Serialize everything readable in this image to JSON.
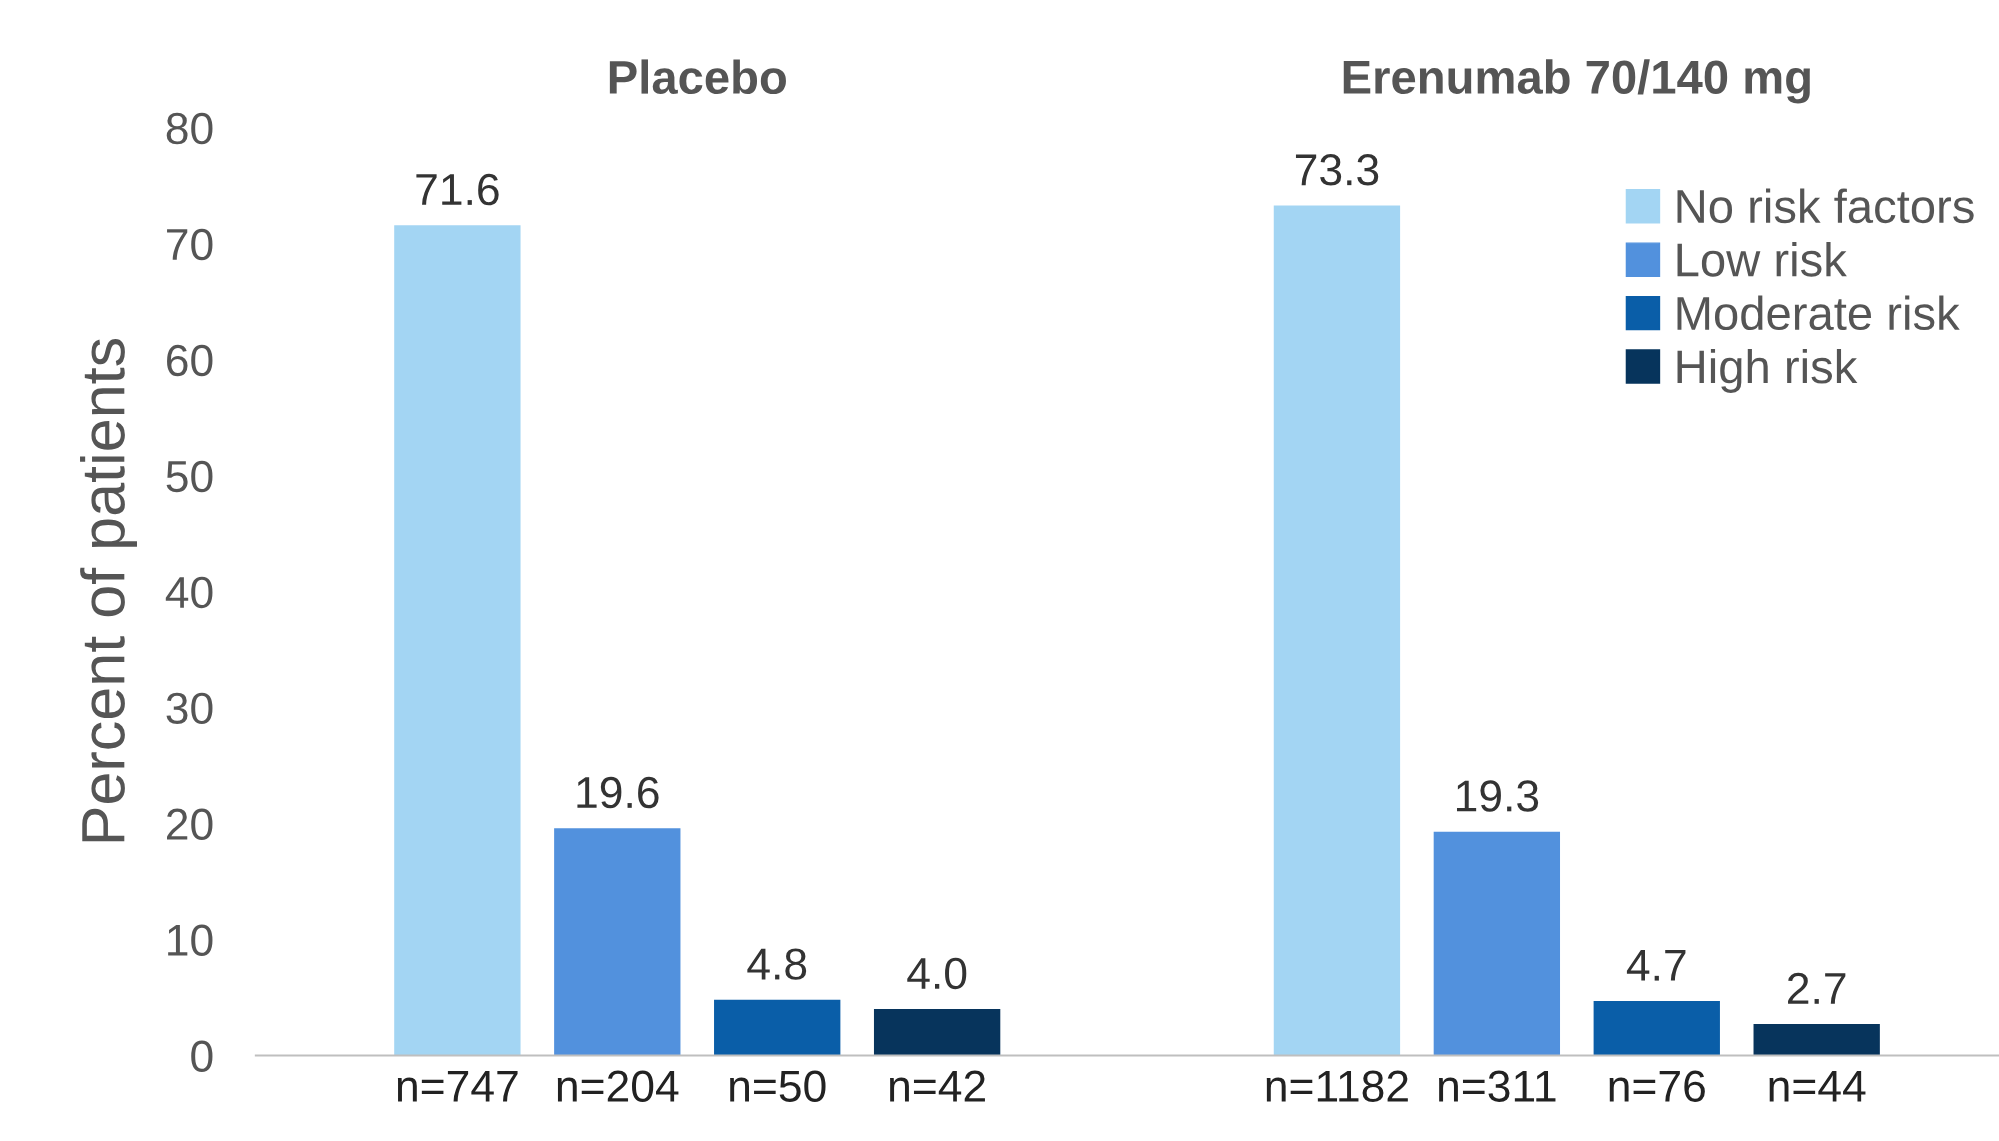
{
  "chart_data": {
    "type": "bar",
    "ylabel": "Percent of patients",
    "categories": [
      "n=747",
      "n=204",
      "n=50",
      "n=42",
      "n=1182",
      "n=311",
      "n=76",
      "n=44"
    ],
    "series": [
      {
        "name": "No risk factors",
        "color": "#a3d5f3",
        "values": [
          71.6,
          null,
          null,
          null,
          73.3,
          null,
          null,
          null
        ]
      },
      {
        "name": "Low risk",
        "color": "#5291dd",
        "values": [
          null,
          19.6,
          null,
          null,
          null,
          19.3,
          null,
          null
        ]
      },
      {
        "name": "Moderate risk",
        "color": "#0a5ea8",
        "values": [
          null,
          null,
          4.8,
          null,
          null,
          null,
          4.7,
          null
        ]
      },
      {
        "name": "High risk",
        "color": "#07345c",
        "values": [
          null,
          null,
          null,
          4.0,
          null,
          null,
          null,
          2.7
        ],
        "value_labels": [
          null,
          null,
          null,
          "4.0",
          null,
          null,
          null,
          "2.7"
        ]
      }
    ],
    "annotations": [
      "Placebo",
      "Erenumab 70/140 mg"
    ],
    "ylim": [
      0,
      80
    ],
    "yticks": [
      0,
      10,
      20,
      30,
      40,
      50,
      60,
      70,
      80
    ],
    "data_labels": true,
    "legend": "top right"
  }
}
